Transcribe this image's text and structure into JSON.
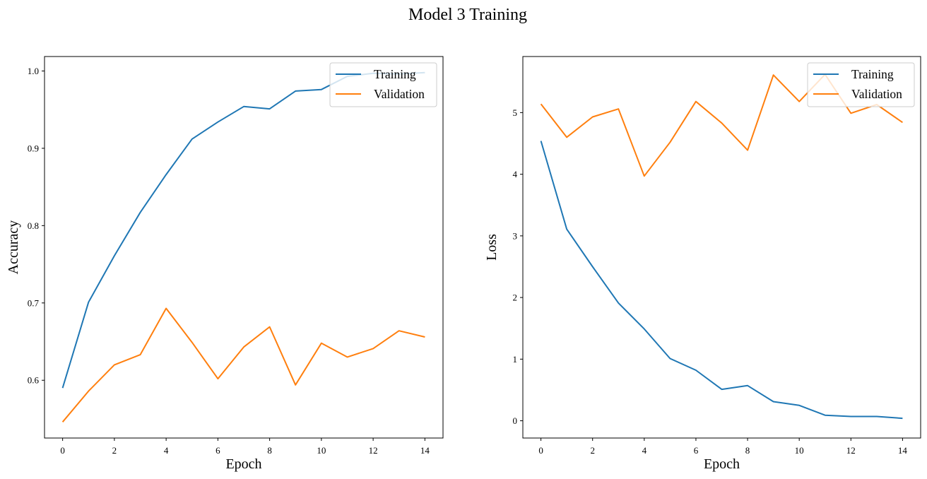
{
  "figure_title": "Model 3 Training",
  "colors": {
    "training": "#1f77b4",
    "validation": "#ff7f0e"
  },
  "chart_data": [
    {
      "type": "line",
      "title": "",
      "xlabel": "Epoch",
      "ylabel": "Accuracy",
      "xlim": [
        -0.7,
        14.7
      ],
      "ylim": [
        0.5253,
        1.0187
      ],
      "xticks": [
        0,
        2,
        4,
        6,
        8,
        10,
        12,
        14
      ],
      "yticks": [
        0.6,
        0.7,
        0.8,
        0.9,
        1.0
      ],
      "ytick_labels": [
        "0.6",
        "0.7",
        "0.8",
        "0.9",
        "1.0"
      ],
      "grid": false,
      "legend_position": "upper right",
      "x": [
        0,
        1,
        2,
        3,
        4,
        5,
        6,
        7,
        8,
        9,
        10,
        11,
        12,
        13,
        14
      ],
      "series": [
        {
          "name": "Training",
          "color": "#1f77b4",
          "values": [
            0.59,
            0.701,
            0.761,
            0.817,
            0.866,
            0.912,
            0.934,
            0.954,
            0.951,
            0.974,
            0.976,
            0.993,
            0.997,
            0.996,
            0.998
          ]
        },
        {
          "name": "Validation",
          "color": "#ff7f0e",
          "values": [
            0.546,
            0.586,
            0.62,
            0.633,
            0.693,
            0.649,
            0.602,
            0.643,
            0.669,
            0.594,
            0.648,
            0.63,
            0.641,
            0.664,
            0.656
          ]
        }
      ]
    },
    {
      "type": "line",
      "title": "",
      "xlabel": "Epoch",
      "ylabel": "Loss",
      "xlim": [
        -0.7,
        14.7
      ],
      "ylim": [
        -0.28,
        5.91
      ],
      "xticks": [
        0,
        2,
        4,
        6,
        8,
        10,
        12,
        14
      ],
      "yticks": [
        0,
        1,
        2,
        3,
        4,
        5
      ],
      "ytick_labels": [
        "0",
        "1",
        "2",
        "3",
        "4",
        "5"
      ],
      "grid": false,
      "legend_position": "upper right",
      "x": [
        0,
        1,
        2,
        3,
        4,
        5,
        6,
        7,
        8,
        9,
        10,
        11,
        12,
        13,
        14
      ],
      "series": [
        {
          "name": "Training",
          "color": "#1f77b4",
          "values": [
            4.54,
            3.11,
            2.5,
            1.91,
            1.49,
            1.01,
            0.82,
            0.51,
            0.57,
            0.31,
            0.25,
            0.09,
            0.07,
            0.07,
            0.04
          ]
        },
        {
          "name": "Validation",
          "color": "#ff7f0e",
          "values": [
            5.14,
            4.6,
            4.93,
            5.06,
            3.97,
            4.52,
            5.18,
            4.83,
            4.39,
            5.61,
            5.18,
            5.62,
            4.99,
            5.13,
            4.84
          ]
        }
      ]
    }
  ]
}
